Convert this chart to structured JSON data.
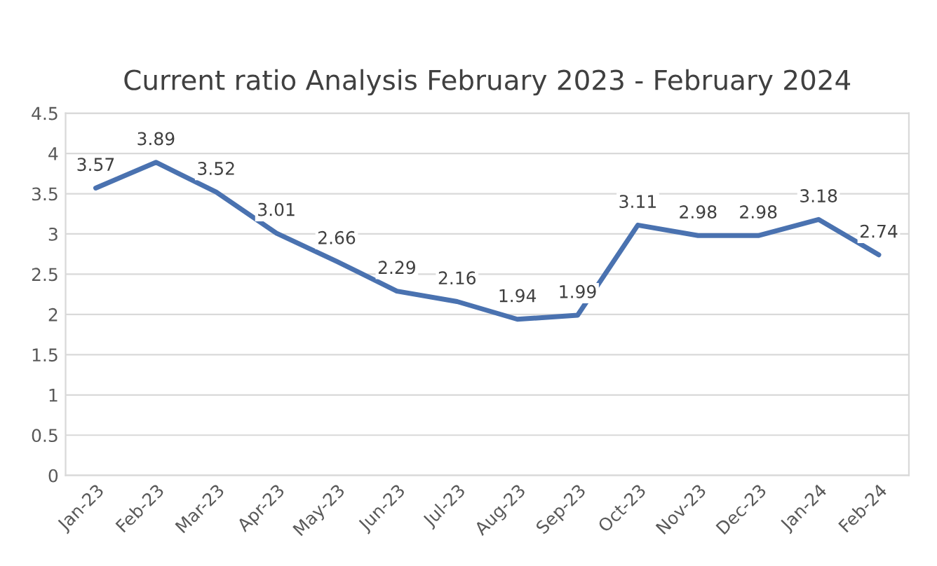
{
  "chart_data": {
    "type": "line",
    "title": "Current ratio Analysis February 2023 - February 2024",
    "categories": [
      "Jan-23",
      "Feb-23",
      "Mar-23",
      "Apr-23",
      "May-23",
      "Jun-23",
      "Jul-23",
      "Aug-23",
      "Sep-23",
      "Oct-23",
      "Nov-23",
      "Dec-23",
      "Jan-24",
      "Feb-24"
    ],
    "series": [
      {
        "color": "#4a72b0",
        "values": [
          3.57,
          3.89,
          3.52,
          3.01,
          2.66,
          2.29,
          2.16,
          1.94,
          1.99,
          3.11,
          2.98,
          2.98,
          3.18,
          2.74
        ]
      }
    ],
    "ylim": [
      0,
      4.5
    ],
    "yticks": [
      0,
      0.5,
      1,
      1.5,
      2,
      2.5,
      3,
      3.5,
      4,
      4.5
    ],
    "grid": "y",
    "marker": "none",
    "line_style": "solid",
    "data_labels": true
  }
}
